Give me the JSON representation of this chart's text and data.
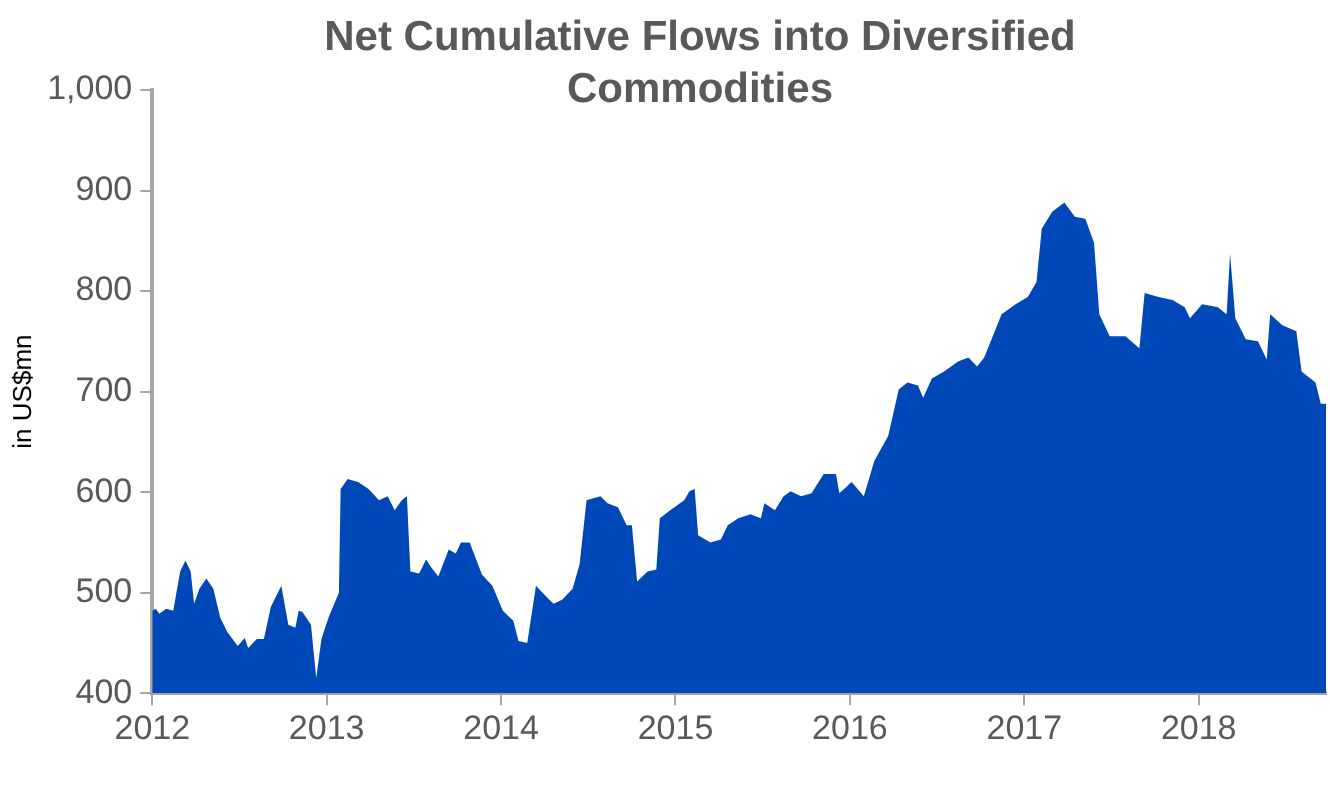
{
  "chart_data": {
    "type": "area",
    "title": "Net Cumulative Flows into Diversified Commodities",
    "ylabel": "in US$mn",
    "color": "#0048b8",
    "x": [
      2012.0,
      2012.02,
      2012.04,
      2012.08,
      2012.12,
      2012.16,
      2012.19,
      2012.22,
      2012.24,
      2012.27,
      2012.31,
      2012.35,
      2012.39,
      2012.43,
      2012.49,
      2012.53,
      2012.55,
      2012.6,
      2012.64,
      2012.68,
      2012.72,
      2012.74,
      2012.78,
      2012.82,
      2012.84,
      2012.86,
      2012.91,
      2012.94,
      2012.97,
      2013.01,
      2013.07,
      2013.08,
      2013.12,
      2013.18,
      2013.24,
      2013.3,
      2013.35,
      2013.39,
      2013.43,
      2013.46,
      2013.48,
      2013.53,
      2013.57,
      2013.6,
      2013.64,
      2013.7,
      2013.74,
      2013.77,
      2013.82,
      2013.89,
      2013.95,
      2014.01,
      2014.07,
      2014.1,
      2014.15,
      2014.2,
      2014.26,
      2014.3,
      2014.35,
      2014.41,
      2014.45,
      2014.49,
      2014.57,
      2014.61,
      2014.67,
      2014.72,
      2014.75,
      2014.78,
      2014.84,
      2014.89,
      2014.91,
      2014.97,
      2015.05,
      2015.08,
      2015.11,
      2015.13,
      2015.2,
      2015.26,
      2015.3,
      2015.36,
      2015.43,
      2015.49,
      2015.51,
      2015.57,
      2015.62,
      2015.66,
      2015.72,
      2015.78,
      2015.85,
      2015.92,
      2015.94,
      2016.01,
      2016.08,
      2016.14,
      2016.22,
      2016.28,
      2016.33,
      2016.39,
      2016.42,
      2016.47,
      2016.54,
      2016.62,
      2016.68,
      2016.73,
      2016.77,
      2016.87,
      2016.95,
      2017.02,
      2017.07,
      2017.1,
      2017.16,
      2017.23,
      2017.29,
      2017.35,
      2017.4,
      2017.43,
      2017.49,
      2017.58,
      2017.66,
      2017.69,
      2017.77,
      2017.85,
      2017.92,
      2017.95,
      2018.02,
      2018.11,
      2018.16,
      2018.18,
      2018.21,
      2018.27,
      2018.34,
      2018.39,
      2018.41,
      2018.48,
      2018.56,
      2018.59,
      2018.67,
      2018.7,
      2018.73
    ],
    "values": [
      482,
      484,
      479,
      484,
      482,
      521,
      532,
      521,
      489,
      504,
      514,
      504,
      475,
      461,
      447,
      455,
      445,
      454,
      454,
      486,
      500,
      507,
      468,
      465,
      482,
      481,
      468,
      415,
      454,
      475,
      500,
      603,
      613,
      610,
      603,
      592,
      596,
      582,
      592,
      596,
      521,
      519,
      533,
      525,
      516,
      543,
      539,
      550,
      550,
      518,
      507,
      482,
      472,
      452,
      450,
      507,
      496,
      489,
      493,
      504,
      528,
      592,
      596,
      589,
      585,
      567,
      567,
      511,
      521,
      523,
      574,
      582,
      592,
      601,
      603,
      557,
      550,
      553,
      567,
      574,
      578,
      574,
      589,
      582,
      596,
      601,
      596,
      599,
      618,
      618,
      599,
      610,
      596,
      631,
      656,
      702,
      709,
      706,
      694,
      713,
      720,
      730,
      734,
      725,
      734,
      777,
      787,
      794,
      809,
      862,
      879,
      888,
      874,
      872,
      848,
      777,
      755,
      755,
      743,
      798,
      794,
      791,
      784,
      773,
      787,
      784,
      777,
      837,
      773,
      752,
      750,
      732,
      777,
      766,
      760,
      720,
      709,
      688,
      688
    ],
    "xlim": [
      2012,
      2018.73
    ],
    "xticks": [
      2012,
      2013,
      2014,
      2015,
      2016,
      2017,
      2018
    ],
    "ylim": [
      400,
      1000
    ],
    "yticks": [
      400,
      500,
      600,
      700,
      800,
      900,
      {
        "value": 1000,
        "label": "1,000"
      }
    ]
  }
}
